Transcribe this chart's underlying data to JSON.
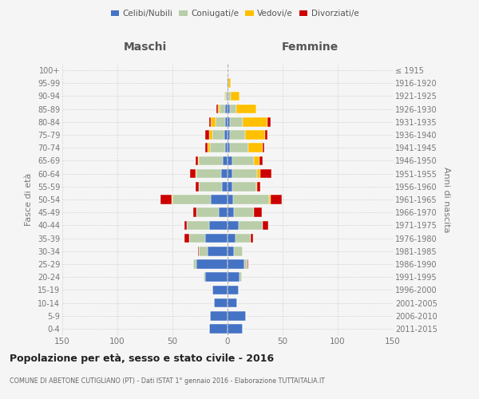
{
  "age_groups": [
    "0-4",
    "5-9",
    "10-14",
    "15-19",
    "20-24",
    "25-29",
    "30-34",
    "35-39",
    "40-44",
    "45-49",
    "50-54",
    "55-59",
    "60-64",
    "65-69",
    "70-74",
    "75-79",
    "80-84",
    "85-89",
    "90-94",
    "95-99",
    "100+"
  ],
  "birth_years": [
    "2011-2015",
    "2006-2010",
    "2001-2005",
    "1996-2000",
    "1991-1995",
    "1986-1990",
    "1981-1985",
    "1976-1980",
    "1971-1975",
    "1966-1970",
    "1961-1965",
    "1956-1960",
    "1951-1955",
    "1946-1950",
    "1941-1945",
    "1936-1940",
    "1931-1935",
    "1926-1930",
    "1921-1925",
    "1916-1920",
    "≤ 1915"
  ],
  "maschi": {
    "celibi": [
      17,
      16,
      12,
      14,
      20,
      28,
      18,
      20,
      17,
      8,
      15,
      5,
      6,
      4,
      2,
      3,
      2,
      2,
      1,
      1,
      0
    ],
    "coniugati": [
      0,
      0,
      0,
      0,
      2,
      3,
      8,
      15,
      20,
      20,
      35,
      21,
      22,
      22,
      14,
      11,
      9,
      5,
      1,
      0,
      0
    ],
    "vedovi": [
      0,
      0,
      0,
      0,
      0,
      0,
      0,
      0,
      0,
      0,
      1,
      0,
      1,
      1,
      2,
      3,
      4,
      2,
      1,
      0,
      0
    ],
    "divorziati": [
      0,
      0,
      0,
      0,
      0,
      0,
      1,
      4,
      2,
      3,
      10,
      3,
      5,
      2,
      2,
      3,
      2,
      1,
      0,
      0,
      0
    ]
  },
  "femmine": {
    "nubili": [
      14,
      17,
      9,
      10,
      11,
      15,
      6,
      7,
      10,
      6,
      5,
      4,
      4,
      4,
      2,
      2,
      2,
      2,
      1,
      1,
      0
    ],
    "coniugate": [
      0,
      0,
      0,
      0,
      2,
      3,
      8,
      14,
      22,
      18,
      33,
      22,
      23,
      20,
      17,
      14,
      12,
      6,
      2,
      0,
      0
    ],
    "vedove": [
      0,
      0,
      0,
      0,
      0,
      0,
      0,
      0,
      0,
      0,
      1,
      1,
      3,
      5,
      13,
      18,
      22,
      18,
      8,
      2,
      0
    ],
    "divorziate": [
      0,
      0,
      0,
      0,
      0,
      1,
      0,
      2,
      5,
      7,
      10,
      3,
      10,
      3,
      1,
      2,
      3,
      0,
      0,
      0,
      0
    ]
  },
  "colors": {
    "celibi": "#4472c4",
    "coniugati": "#b8cda8",
    "vedovi": "#ffc000",
    "divorziati": "#cc0000"
  },
  "xlim": 150,
  "title": "Popolazione per età, sesso e stato civile - 2016",
  "subtitle": "COMUNE DI ABETONE CUTIGLIANO (PT) - Dati ISTAT 1° gennaio 2016 - Elaborazione TUTTAITALIA.IT",
  "ylabel_left": "Fasce di età",
  "ylabel_right": "Anni di nascita",
  "label_maschi": "Maschi",
  "label_femmine": "Femmine",
  "legend_labels": [
    "Celibi/Nubili",
    "Coniugati/e",
    "Vedovi/e",
    "Divorziati/e"
  ],
  "bg_color": "#f5f5f5"
}
